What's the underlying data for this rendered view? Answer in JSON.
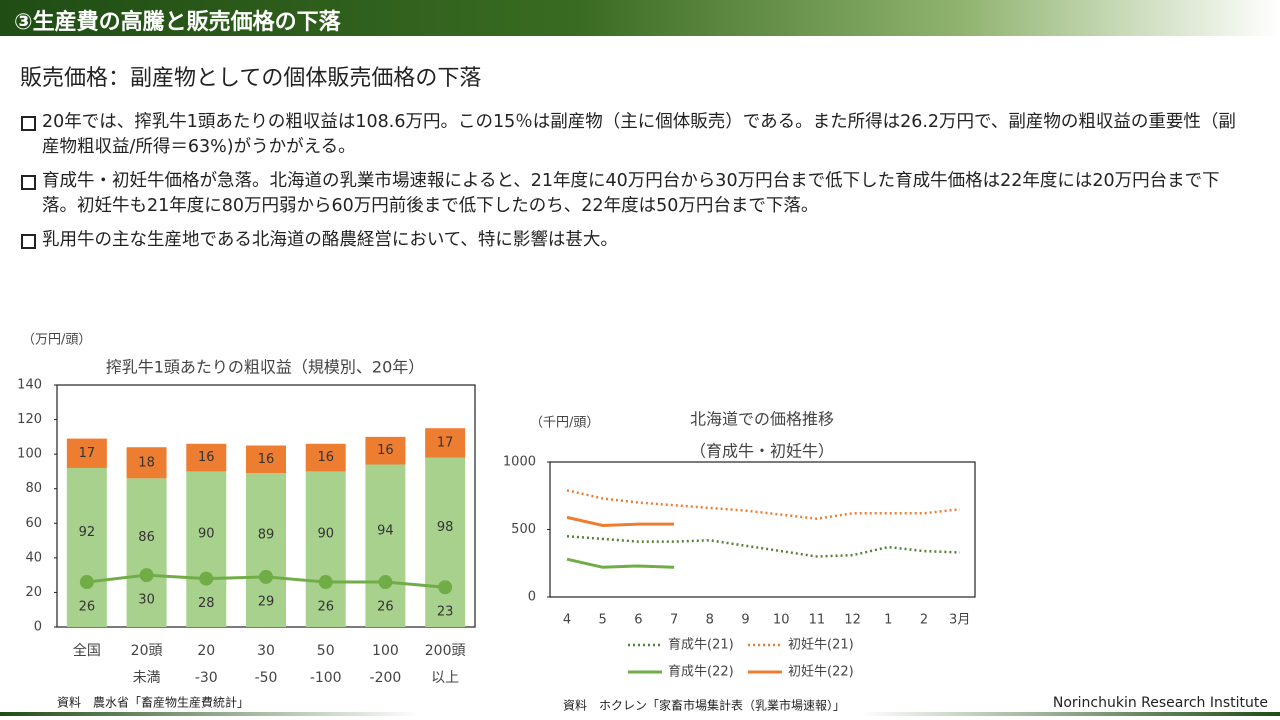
{
  "header": "③生産費の高騰と販売価格の下落",
  "subtitle": "販売価格：副産物としての個体販売価格の下落",
  "bullets": [
    "20年では、搾乳牛1頭あたりの粗収益は108.6万円。この15％は副産物（主に個体販売）である。また所得は26.2万円で、副産物の粗収益の重要性（副産物粗収益/所得＝63%)がうかがえる。",
    "育成牛・初妊牛価格が急落。北海道の乳業市場速報によると、21年度に40万円台から30万円台まで低下した育成牛価格は22年度には20万円台まで下落。初妊牛も21年度に80万円弱から60万円前後まで低下したのち、22年度は50万円台まで下落。",
    "乳用牛の主な生産地である北海道の酪農経営において、特に影響は甚大。"
  ],
  "chart_data": [
    {
      "type": "bar",
      "title": "搾乳牛1頭あたりの粗収益（規模別、20年）",
      "y_label": "（万円/頭）",
      "categories": [
        [
          "全国"
        ],
        [
          "20頭",
          "未満"
        ],
        [
          "20",
          "-30"
        ],
        [
          "30",
          "-50"
        ],
        [
          "50",
          "-100"
        ],
        [
          "100",
          "-200"
        ],
        [
          "200頭",
          "以上"
        ]
      ],
      "series": [
        {
          "type": "bar",
          "color": "#a9d18e",
          "values": [
            92,
            86,
            90,
            89,
            90,
            94,
            98
          ]
        },
        {
          "type": "bar",
          "color": "#ed7d31",
          "values": [
            17,
            18,
            16,
            16,
            16,
            16,
            17
          ]
        },
        {
          "type": "line",
          "color": "#70ad47",
          "values": [
            26,
            30,
            28,
            29,
            26,
            26,
            23
          ]
        }
      ],
      "stacked": true,
      "ylim": [
        0,
        140
      ],
      "yticks": [
        0,
        20,
        40,
        60,
        80,
        100,
        120,
        140
      ],
      "source": "資料　農水省「畜産物生産費統計」"
    },
    {
      "type": "line",
      "title": [
        "北海道での価格推移",
        "（育成牛・初妊牛）"
      ],
      "y_label": "（千円/頭）",
      "categories": [
        "4",
        "5",
        "6",
        "7",
        "8",
        "9",
        "10",
        "11",
        "12",
        "1",
        "2",
        "3月"
      ],
      "series": [
        {
          "name": "育成牛(21)",
          "color": "#548235",
          "style": "dotted",
          "values": [
            450,
            430,
            410,
            410,
            420,
            380,
            340,
            300,
            310,
            370,
            340,
            330
          ]
        },
        {
          "name": "初妊牛(21)",
          "color": "#ed7d31",
          "style": "dotted",
          "values": [
            790,
            730,
            700,
            680,
            660,
            640,
            610,
            580,
            620,
            620,
            620,
            650
          ]
        },
        {
          "name": "育成牛(22)",
          "color": "#70ad47",
          "style": "solid",
          "values": [
            280,
            220,
            230,
            220,
            null,
            null,
            null,
            null,
            null,
            null,
            null,
            null
          ]
        },
        {
          "name": "初妊牛(22)",
          "color": "#ed7d31",
          "style": "solid",
          "values": [
            590,
            530,
            540,
            540,
            null,
            null,
            null,
            null,
            null,
            null,
            null,
            null
          ]
        }
      ],
      "ylim": [
        0,
        1000
      ],
      "yticks": [
        0,
        500,
        1000
      ],
      "source": "資料　ホクレン「家畜市場集計表（乳業市場速報）」"
    }
  ],
  "footer": "Norinchukin Research Institute"
}
